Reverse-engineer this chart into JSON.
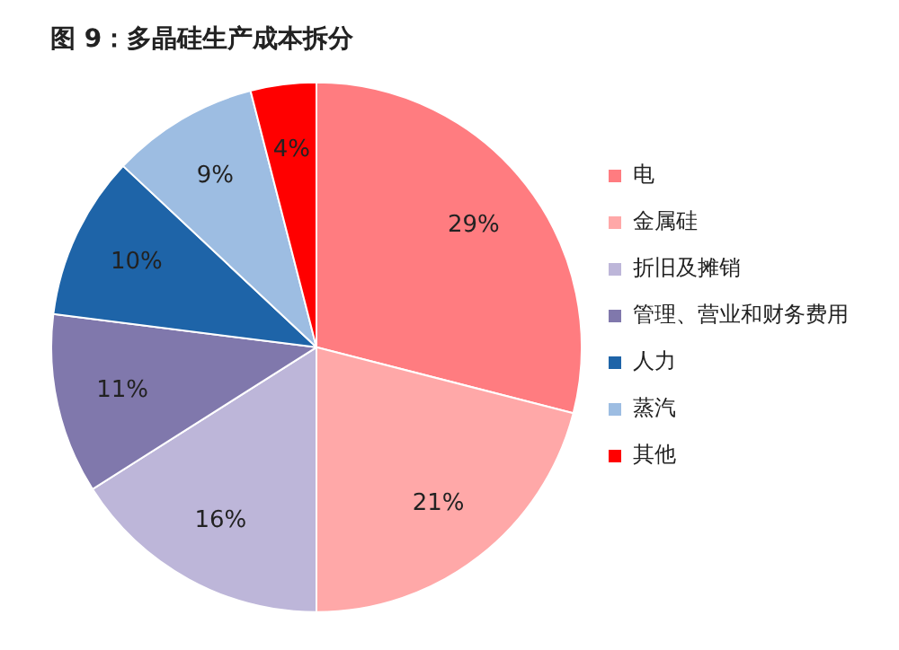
{
  "chart_data": {
    "type": "pie",
    "title": "图 9：多晶硅生产成本拆分",
    "categories": [
      "电",
      "金属硅",
      "折旧及摊销",
      "管理、营业和财务费用",
      "人力",
      "蒸汽",
      "其他"
    ],
    "values": [
      29,
      21,
      16,
      11,
      10,
      9,
      4
    ],
    "value_labels": [
      "29%",
      "21%",
      "16%",
      "11%",
      "10%",
      "9%",
      "4%"
    ],
    "colors": [
      "#ff7c80",
      "#ffa8a8",
      "#bdb6d9",
      "#8078ac",
      "#1e64a8",
      "#9dbde2",
      "#ff0000"
    ],
    "legend": "right"
  }
}
